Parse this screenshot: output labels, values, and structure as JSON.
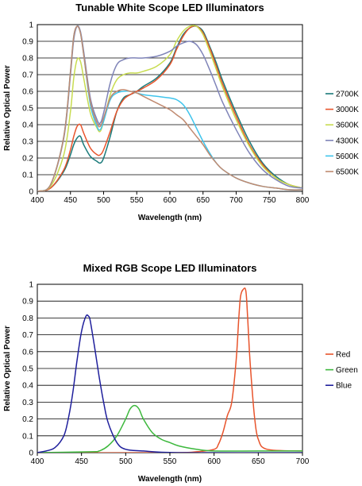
{
  "chart_data": [
    {
      "type": "line",
      "title": "Tunable White Scope LED Illuminators",
      "xlabel": "Wavelength (nm)",
      "ylabel": "Relative Optical Power",
      "xlim": [
        400,
        800
      ],
      "ylim": [
        0,
        1
      ],
      "xticks": [
        400,
        450,
        500,
        550,
        600,
        650,
        700,
        750,
        800
      ],
      "yticks": [
        0,
        0.1,
        0.2,
        0.3,
        0.4,
        0.5,
        0.6,
        0.7,
        0.8,
        0.9,
        1
      ],
      "grid": "horizontal",
      "legend_position": "right",
      "x": [
        400,
        420,
        440,
        450,
        455,
        460,
        465,
        470,
        480,
        490,
        495,
        500,
        510,
        520,
        530,
        540,
        550,
        560,
        580,
        600,
        610,
        620,
        630,
        640,
        650,
        660,
        670,
        680,
        700,
        720,
        740,
        760,
        780,
        800
      ],
      "series": [
        {
          "name": "2700K",
          "color": "#1a7a7a",
          "values": [
            0.0,
            0.02,
            0.12,
            0.22,
            0.28,
            0.32,
            0.33,
            0.28,
            0.21,
            0.18,
            0.17,
            0.2,
            0.33,
            0.48,
            0.56,
            0.58,
            0.6,
            0.63,
            0.68,
            0.77,
            0.86,
            0.94,
            0.98,
            0.99,
            0.96,
            0.87,
            0.77,
            0.66,
            0.47,
            0.3,
            0.17,
            0.09,
            0.04,
            0.02
          ]
        },
        {
          "name": "3000K",
          "color": "#e8542c",
          "values": [
            0.0,
            0.02,
            0.13,
            0.25,
            0.33,
            0.39,
            0.4,
            0.35,
            0.26,
            0.22,
            0.22,
            0.25,
            0.36,
            0.48,
            0.55,
            0.58,
            0.6,
            0.62,
            0.67,
            0.76,
            0.85,
            0.93,
            0.98,
            0.99,
            0.95,
            0.86,
            0.75,
            0.64,
            0.45,
            0.28,
            0.16,
            0.08,
            0.04,
            0.02
          ]
        },
        {
          "name": "3600K",
          "color": "#c8dc50",
          "values": [
            0.0,
            0.03,
            0.22,
            0.48,
            0.68,
            0.79,
            0.78,
            0.68,
            0.47,
            0.38,
            0.36,
            0.42,
            0.58,
            0.67,
            0.7,
            0.71,
            0.71,
            0.72,
            0.75,
            0.82,
            0.9,
            0.96,
            0.99,
            0.99,
            0.94,
            0.84,
            0.73,
            0.62,
            0.43,
            0.27,
            0.15,
            0.08,
            0.04,
            0.02
          ]
        },
        {
          "name": "4300K",
          "color": "#7f84b8",
          "values": [
            0.0,
            0.04,
            0.32,
            0.7,
            0.91,
            0.99,
            0.96,
            0.84,
            0.56,
            0.43,
            0.41,
            0.47,
            0.65,
            0.76,
            0.79,
            0.8,
            0.8,
            0.8,
            0.81,
            0.84,
            0.87,
            0.89,
            0.9,
            0.88,
            0.82,
            0.73,
            0.63,
            0.53,
            0.37,
            0.23,
            0.13,
            0.07,
            0.03,
            0.02
          ]
        },
        {
          "name": "5600K",
          "color": "#3fc4ec",
          "values": [
            0.0,
            0.04,
            0.33,
            0.72,
            0.93,
            0.99,
            0.95,
            0.82,
            0.52,
            0.39,
            0.37,
            0.42,
            0.55,
            0.59,
            0.6,
            0.6,
            0.59,
            0.58,
            0.57,
            0.56,
            0.55,
            0.52,
            0.46,
            0.38,
            0.3,
            0.23,
            0.17,
            0.13,
            0.08,
            0.05,
            0.03,
            0.02,
            0.01,
            0.01
          ]
        },
        {
          "name": "6500K",
          "color": "#c08a70",
          "values": [
            0.0,
            0.04,
            0.33,
            0.72,
            0.93,
            0.99,
            0.95,
            0.82,
            0.54,
            0.41,
            0.39,
            0.44,
            0.56,
            0.6,
            0.61,
            0.6,
            0.59,
            0.57,
            0.53,
            0.49,
            0.46,
            0.43,
            0.38,
            0.33,
            0.28,
            0.22,
            0.17,
            0.13,
            0.08,
            0.05,
            0.03,
            0.02,
            0.01,
            0.01
          ]
        }
      ]
    },
    {
      "type": "line",
      "title": "Mixed RGB Scope LED Illuminators",
      "xlabel": "Wavelength (nm)",
      "ylabel": "Relative Optical Power",
      "xlim": [
        400,
        700
      ],
      "ylim": [
        0,
        1
      ],
      "xticks": [
        400,
        450,
        500,
        550,
        600,
        650,
        700
      ],
      "yticks": [
        0,
        0.1,
        0.2,
        0.3,
        0.4,
        0.5,
        0.6,
        0.7,
        0.8,
        0.9,
        1
      ],
      "grid": "horizontal",
      "legend_position": "right",
      "series": [
        {
          "name": "Red",
          "color": "#e8542c",
          "x": [
            400,
            550,
            580,
            600,
            605,
            610,
            615,
            620,
            625,
            628,
            630,
            633,
            636,
            638,
            640,
            643,
            646,
            650,
            660,
            700
          ],
          "values": [
            0.0,
            0.0,
            0.005,
            0.02,
            0.05,
            0.12,
            0.22,
            0.3,
            0.55,
            0.8,
            0.93,
            0.97,
            0.96,
            0.8,
            0.6,
            0.38,
            0.2,
            0.08,
            0.02,
            0.01
          ]
        },
        {
          "name": "Green",
          "color": "#3db83d",
          "x": [
            400,
            460,
            470,
            480,
            490,
            500,
            505,
            510,
            515,
            520,
            530,
            540,
            550,
            560,
            580,
            600,
            650,
            700
          ],
          "values": [
            0.0,
            0.005,
            0.01,
            0.04,
            0.1,
            0.2,
            0.26,
            0.28,
            0.26,
            0.2,
            0.12,
            0.08,
            0.06,
            0.04,
            0.02,
            0.01,
            0.01,
            0.01
          ]
        },
        {
          "name": "Blue",
          "color": "#1f1f9c",
          "x": [
            400,
            410,
            420,
            430,
            435,
            440,
            445,
            450,
            455,
            458,
            460,
            465,
            470,
            475,
            480,
            490,
            500,
            520,
            560,
            700
          ],
          "values": [
            0.0,
            0.01,
            0.03,
            0.1,
            0.2,
            0.35,
            0.55,
            0.72,
            0.81,
            0.81,
            0.78,
            0.62,
            0.45,
            0.3,
            0.18,
            0.06,
            0.02,
            0.01,
            0.0,
            0.0
          ]
        }
      ]
    }
  ]
}
